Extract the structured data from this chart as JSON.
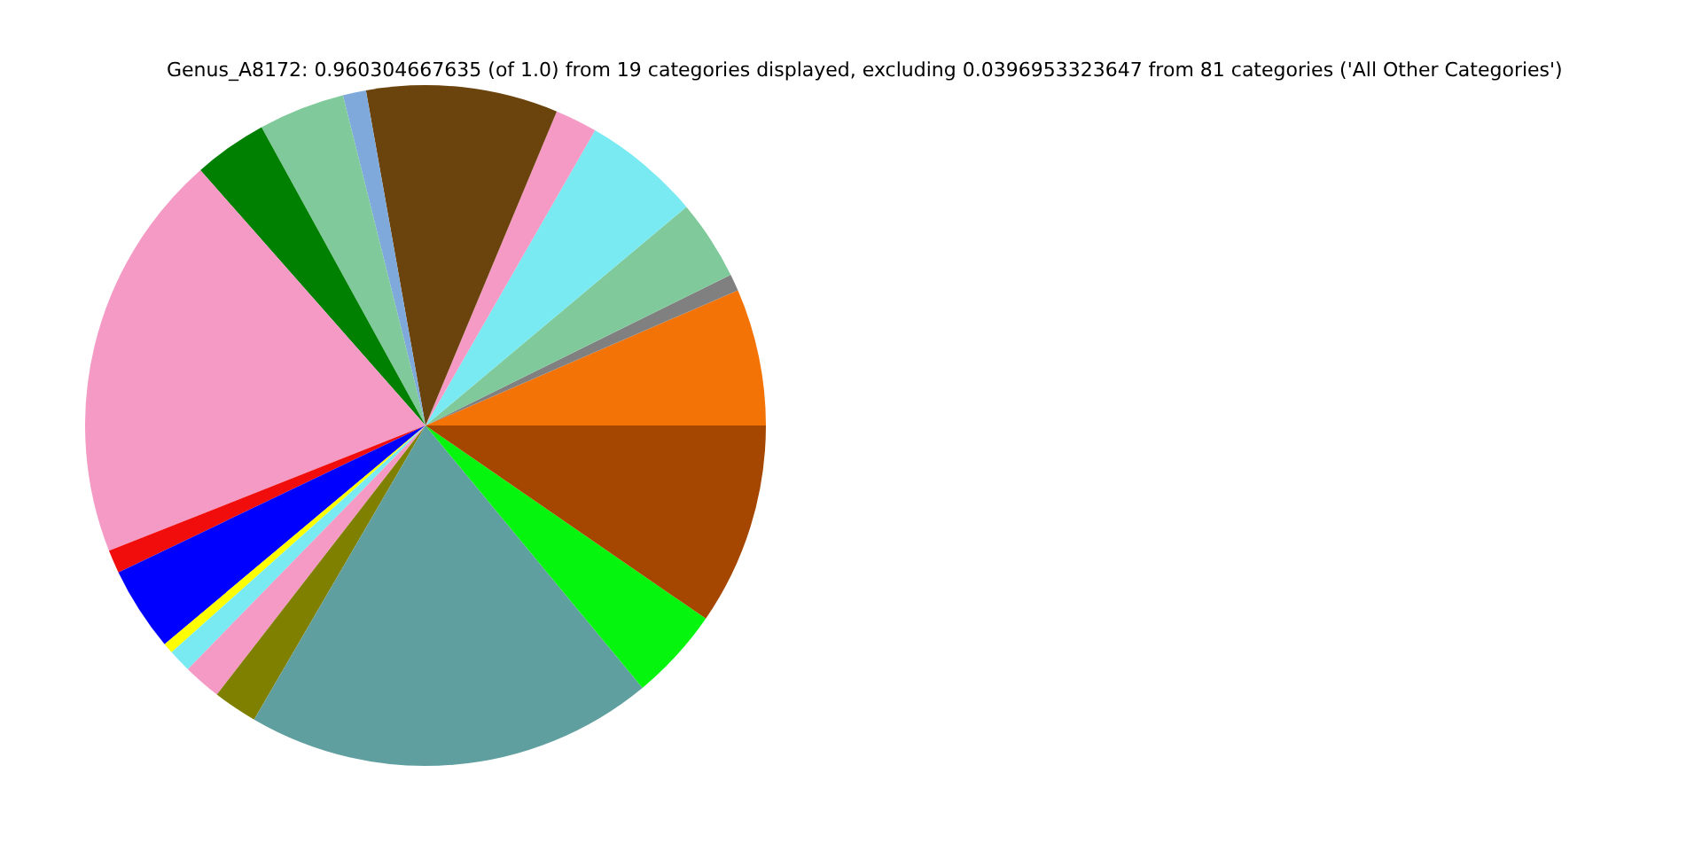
{
  "chart_data": {
    "type": "pie",
    "title": "Genus_A8172: 0.960304667635 (of 1.0) from 19 categories displayed, excluding 0.0396953323647 from 81 categories ('All Other Categories')",
    "categories": [
      null,
      null,
      null,
      null,
      null,
      null,
      null,
      null,
      null,
      null,
      null,
      null,
      null,
      null,
      null,
      null,
      null,
      null,
      null
    ],
    "values": [
      6.5,
      0.8,
      3.8,
      5.6,
      2.0,
      9.1,
      1.1,
      4.1,
      3.5,
      19.5,
      1.1,
      4.0,
      0.5,
      1.1,
      1.8,
      2.1,
      19.4,
      4.4,
      9.6
    ],
    "colors": [
      "#f47306",
      "#808080",
      "#7fc99b",
      "#7aeaf2",
      "#f49ac4",
      "#6b430c",
      "#7fa9da",
      "#7fc99b",
      "#008000",
      "#f49ac4",
      "#f20d0d",
      "#0000ff",
      "#ffff00",
      "#7aeaf2",
      "#f49ac4",
      "#808000",
      "#5f9f9f",
      "#06f50e",
      "#a54700"
    ]
  }
}
